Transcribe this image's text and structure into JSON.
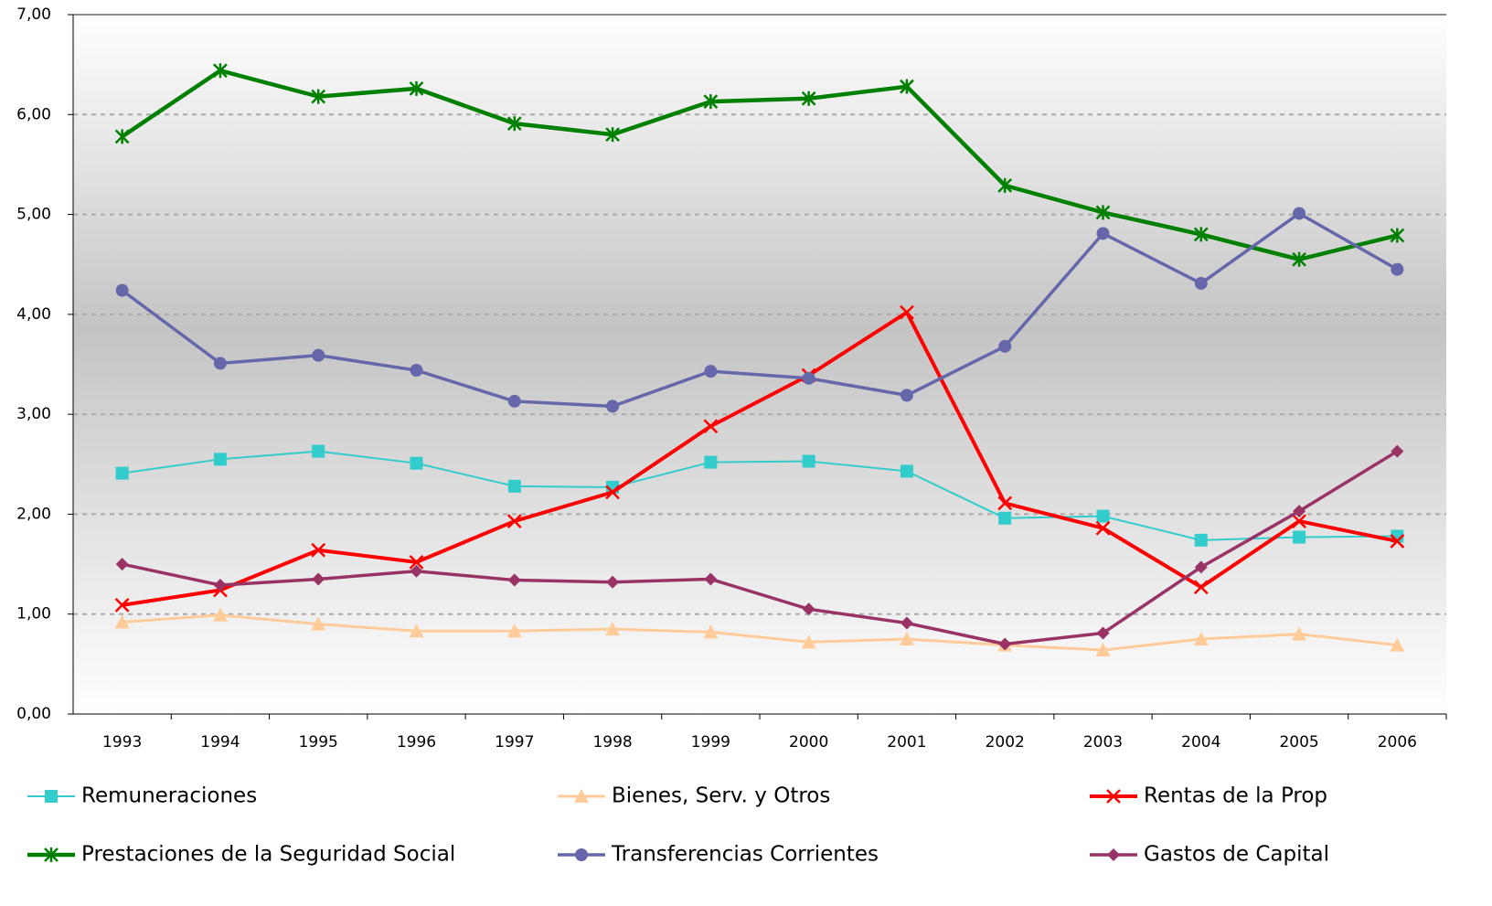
{
  "chart_data": {
    "type": "line",
    "categories": [
      "1993",
      "1994",
      "1995",
      "1996",
      "1997",
      "1998",
      "1999",
      "2000",
      "2001",
      "2002",
      "2003",
      "2004",
      "2005",
      "2006"
    ],
    "ylim": [
      0,
      7
    ],
    "yticks": [
      {
        "value": 0,
        "label": "0,00"
      },
      {
        "value": 1,
        "label": "1,00"
      },
      {
        "value": 2,
        "label": "2,00"
      },
      {
        "value": 3,
        "label": "3,00"
      },
      {
        "value": 4,
        "label": "4,00"
      },
      {
        "value": 5,
        "label": "5,00"
      },
      {
        "value": 6,
        "label": "6,00"
      },
      {
        "value": 7,
        "label": "7,00"
      }
    ],
    "grid": true,
    "legend": "bottom",
    "series": [
      {
        "name": "Remuneraciones",
        "color": "#33cccc",
        "marker": "square",
        "values": [
          2.41,
          2.55,
          2.63,
          2.51,
          2.28,
          2.27,
          2.52,
          2.53,
          2.43,
          1.96,
          1.98,
          1.74,
          1.77,
          1.78
        ]
      },
      {
        "name": "Bienes, Serv. y Otros",
        "color": "#ffcc99",
        "marker": "triangle",
        "values": [
          0.92,
          0.99,
          0.9,
          0.83,
          0.83,
          0.85,
          0.82,
          0.72,
          0.75,
          0.69,
          0.64,
          0.75,
          0.8,
          0.69
        ]
      },
      {
        "name": "Rentas de la Prop",
        "color": "#ff0000",
        "marker": "x",
        "values": [
          1.09,
          1.24,
          1.64,
          1.52,
          1.93,
          2.22,
          2.88,
          3.39,
          4.02,
          2.11,
          1.86,
          1.27,
          1.93,
          1.73
        ]
      },
      {
        "name": "Prestaciones de la Seguridad Social",
        "color": "#008000",
        "marker": "star",
        "values": [
          5.78,
          6.44,
          6.18,
          6.26,
          5.91,
          5.8,
          6.13,
          6.16,
          6.28,
          5.29,
          5.02,
          4.8,
          4.55,
          4.79
        ]
      },
      {
        "name": "Transferencias Corrientes",
        "color": "#6666aa",
        "marker": "circle",
        "values": [
          4.24,
          3.51,
          3.59,
          3.44,
          3.13,
          3.08,
          3.43,
          3.36,
          3.19,
          3.68,
          4.81,
          4.31,
          5.01,
          4.45
        ]
      },
      {
        "name": "Gastos de Capital",
        "color": "#993366",
        "marker": "diamond",
        "values": [
          1.5,
          1.29,
          1.35,
          1.43,
          1.34,
          1.32,
          1.35,
          1.05,
          0.91,
          0.7,
          0.81,
          1.47,
          2.03,
          2.63
        ]
      }
    ]
  }
}
